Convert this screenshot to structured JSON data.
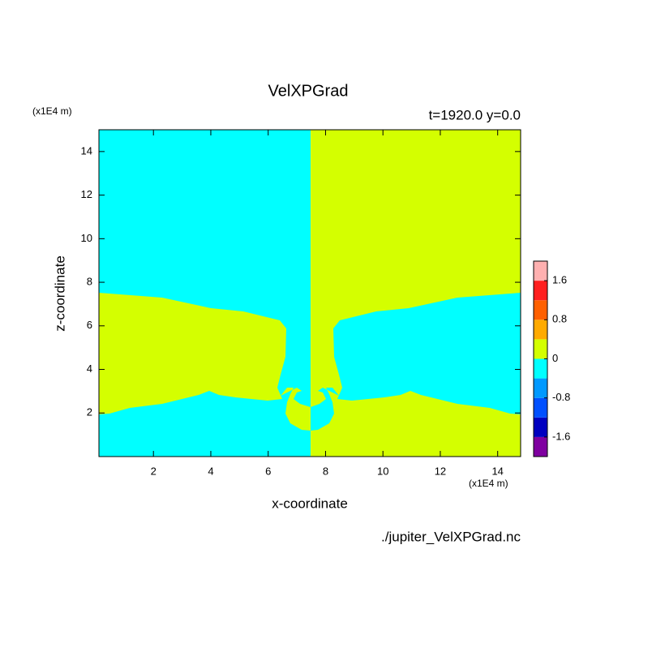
{
  "chart_data": {
    "type": "contour",
    "title": "VelXPGrad",
    "subtitle": "t=1920.0 y=0.0",
    "x_label": "x-coordinate",
    "y_label": "z-coordinate",
    "x_unit": "(x1E4 m)",
    "y_unit": "(x1E4 m)",
    "source": "./jupiter_VelXPGrad.nc",
    "xlim": [
      0.1,
      14.8
    ],
    "ylim": [
      0,
      15
    ],
    "xticks": [
      2,
      4,
      6,
      8,
      10,
      12,
      14
    ],
    "yticks": [
      2,
      4,
      6,
      8,
      10,
      12,
      14
    ],
    "colorbar": {
      "levels": [
        -2,
        -1.6,
        -1.2,
        -0.8,
        -0.4,
        0,
        0.4,
        0.8,
        1.2,
        1.6,
        2
      ],
      "colors": [
        "#7f00a0",
        "#0000c0",
        "#0050ff",
        "#0099ff",
        "#00ffff",
        "#d4ff00",
        "#ffaa00",
        "#ff6000",
        "#ff1f1f",
        "#ffb0b0"
      ],
      "ticks": [
        -1.6,
        -0.8,
        0,
        0.8,
        1.6
      ]
    }
  }
}
